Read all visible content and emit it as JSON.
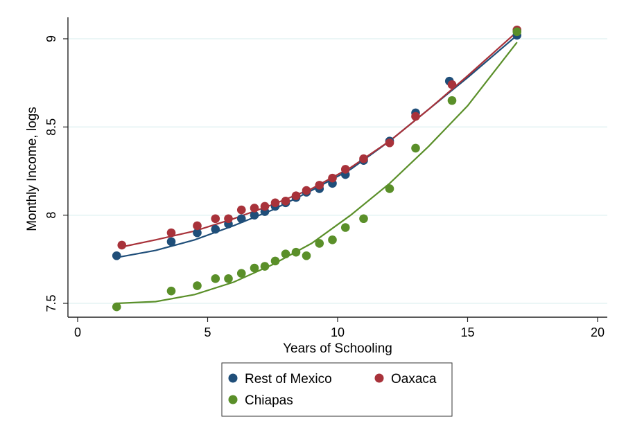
{
  "chart_data": {
    "type": "scatter",
    "title": "",
    "xlabel": "Years of Schooling",
    "ylabel": "Monthly Income, logs",
    "xlim": [
      0,
      20
    ],
    "ylim": [
      7.5,
      9
    ],
    "x_ticks": [
      0,
      5,
      10,
      15,
      20
    ],
    "y_ticks": [
      7.5,
      8,
      8.5,
      9
    ],
    "x_tick_labels": [
      "0",
      "5",
      "10",
      "15",
      "20"
    ],
    "y_tick_labels": [
      "7.5",
      "8",
      "8.5",
      "9"
    ],
    "grid": "horizontal",
    "legend_position": "bottom",
    "series": [
      {
        "name": "Rest of Mexico",
        "color": "#1f4e79",
        "points": [
          [
            1.5,
            7.77
          ],
          [
            3.6,
            7.85
          ],
          [
            4.6,
            7.9
          ],
          [
            5.3,
            7.92
          ],
          [
            5.8,
            7.95
          ],
          [
            6.3,
            7.98
          ],
          [
            6.8,
            8.0
          ],
          [
            7.2,
            8.02
          ],
          [
            7.6,
            8.05
          ],
          [
            8.0,
            8.07
          ],
          [
            8.4,
            8.1
          ],
          [
            8.8,
            8.13
          ],
          [
            9.3,
            8.15
          ],
          [
            9.8,
            8.18
          ],
          [
            10.3,
            8.23
          ],
          [
            11.0,
            8.31
          ],
          [
            12.0,
            8.42
          ],
          [
            13.0,
            8.58
          ],
          [
            14.3,
            8.76
          ],
          [
            16.9,
            9.02
          ]
        ],
        "fit": [
          [
            1.5,
            7.76
          ],
          [
            3.0,
            7.8
          ],
          [
            4.5,
            7.86
          ],
          [
            6.0,
            7.94
          ],
          [
            7.5,
            8.03
          ],
          [
            9.0,
            8.14
          ],
          [
            10.5,
            8.26
          ],
          [
            12.0,
            8.42
          ],
          [
            13.5,
            8.6
          ],
          [
            15.0,
            8.78
          ],
          [
            16.9,
            9.02
          ]
        ]
      },
      {
        "name": "Oaxaca",
        "color": "#a8323a",
        "points": [
          [
            1.7,
            7.83
          ],
          [
            3.6,
            7.9
          ],
          [
            4.6,
            7.94
          ],
          [
            5.3,
            7.98
          ],
          [
            5.8,
            7.98
          ],
          [
            6.3,
            8.03
          ],
          [
            6.8,
            8.04
          ],
          [
            7.2,
            8.05
          ],
          [
            7.6,
            8.07
          ],
          [
            8.0,
            8.08
          ],
          [
            8.4,
            8.11
          ],
          [
            8.8,
            8.14
          ],
          [
            9.3,
            8.17
          ],
          [
            9.8,
            8.21
          ],
          [
            10.3,
            8.26
          ],
          [
            11.0,
            8.32
          ],
          [
            12.0,
            8.41
          ],
          [
            13.0,
            8.56
          ],
          [
            14.4,
            8.74
          ],
          [
            16.9,
            9.05
          ]
        ],
        "fit": [
          [
            1.7,
            7.82
          ],
          [
            3.0,
            7.86
          ],
          [
            4.5,
            7.91
          ],
          [
            6.0,
            7.98
          ],
          [
            7.5,
            8.06
          ],
          [
            9.0,
            8.15
          ],
          [
            10.5,
            8.27
          ],
          [
            12.0,
            8.42
          ],
          [
            13.5,
            8.6
          ],
          [
            15.0,
            8.79
          ],
          [
            16.9,
            9.04
          ]
        ]
      },
      {
        "name": "Chiapas",
        "color": "#5a8f29",
        "points": [
          [
            1.5,
            7.48
          ],
          [
            3.6,
            7.57
          ],
          [
            4.6,
            7.6
          ],
          [
            5.3,
            7.64
          ],
          [
            5.8,
            7.64
          ],
          [
            6.3,
            7.67
          ],
          [
            6.8,
            7.7
          ],
          [
            7.2,
            7.71
          ],
          [
            7.6,
            7.74
          ],
          [
            8.0,
            7.78
          ],
          [
            8.4,
            7.79
          ],
          [
            8.8,
            7.77
          ],
          [
            9.3,
            7.84
          ],
          [
            9.8,
            7.86
          ],
          [
            10.3,
            7.93
          ],
          [
            11.0,
            7.98
          ],
          [
            12.0,
            8.15
          ],
          [
            13.0,
            8.38
          ],
          [
            14.4,
            8.65
          ],
          [
            16.9,
            9.04
          ]
        ],
        "fit": [
          [
            1.5,
            7.5
          ],
          [
            3.0,
            7.51
          ],
          [
            4.5,
            7.55
          ],
          [
            6.0,
            7.62
          ],
          [
            7.5,
            7.72
          ],
          [
            9.0,
            7.84
          ],
          [
            10.5,
            8.0
          ],
          [
            12.0,
            8.18
          ],
          [
            13.5,
            8.39
          ],
          [
            15.0,
            8.62
          ],
          [
            16.9,
            8.98
          ]
        ]
      }
    ]
  }
}
